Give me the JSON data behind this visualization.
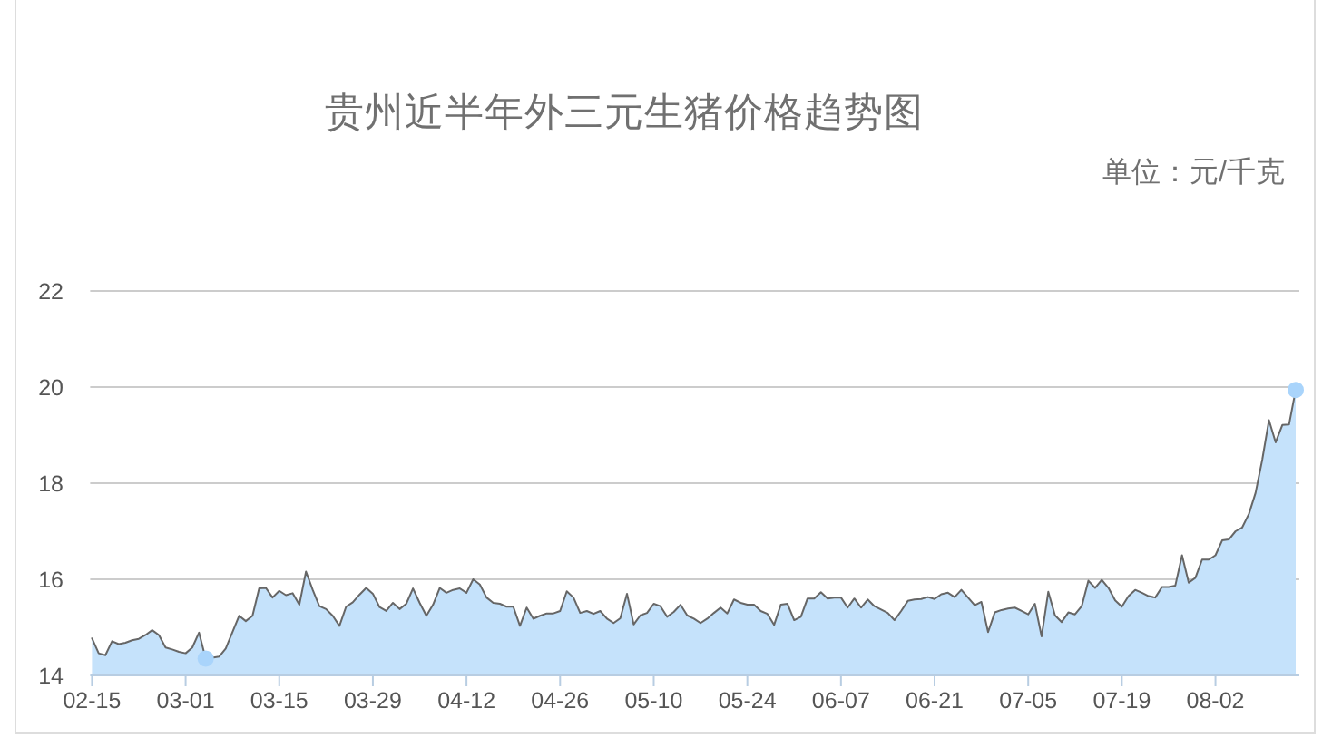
{
  "chart_data": {
    "type": "area",
    "title": "贵州近半年外三元生猪价格趋势图",
    "annotations": [
      "单位：元/千克"
    ],
    "categories": [
      "02-15",
      null,
      null,
      null,
      null,
      null,
      null,
      null,
      null,
      null,
      null,
      null,
      null,
      null,
      "03-01",
      null,
      null,
      null,
      null,
      null,
      null,
      null,
      null,
      null,
      null,
      null,
      null,
      null,
      "03-15",
      null,
      null,
      null,
      null,
      null,
      null,
      null,
      null,
      null,
      null,
      null,
      null,
      null,
      "03-29",
      null,
      null,
      null,
      null,
      null,
      null,
      null,
      null,
      null,
      null,
      null,
      null,
      null,
      "04-12",
      null,
      null,
      null,
      null,
      null,
      null,
      null,
      null,
      null,
      null,
      null,
      null,
      null,
      "04-26",
      null,
      null,
      null,
      null,
      null,
      null,
      null,
      null,
      null,
      null,
      null,
      null,
      null,
      "05-10",
      null,
      null,
      null,
      null,
      null,
      null,
      null,
      null,
      null,
      null,
      null,
      null,
      null,
      "05-24",
      null,
      null,
      null,
      null,
      null,
      null,
      null,
      null,
      null,
      null,
      null,
      null,
      null,
      "06-07",
      null,
      null,
      null,
      null,
      null,
      null,
      null,
      null,
      null,
      null,
      null,
      null,
      null,
      "06-21",
      null,
      null,
      null,
      null,
      null,
      null,
      null,
      null,
      null,
      null,
      null,
      null,
      null,
      "07-05",
      null,
      null,
      null,
      null,
      null,
      null,
      null,
      null,
      null,
      null,
      null,
      null,
      null,
      "07-19",
      null,
      null,
      null,
      null,
      null,
      null,
      null,
      null,
      null,
      null,
      null,
      null,
      null,
      "08-02",
      null,
      null,
      null,
      null,
      null,
      null,
      null,
      null,
      null,
      null,
      null,
      null
    ],
    "series": [
      {
        "color": "#c5e2fb",
        "values": [
          14.77,
          14.46,
          14.42,
          14.71,
          14.65,
          14.68,
          14.73,
          14.76,
          14.84,
          14.94,
          14.84,
          14.58,
          14.54,
          14.49,
          14.46,
          14.58,
          14.89,
          14.35,
          14.37,
          14.39,
          14.56,
          14.9,
          15.24,
          15.13,
          15.24,
          15.81,
          15.82,
          15.62,
          15.76,
          15.67,
          15.71,
          15.47,
          16.16,
          15.78,
          15.44,
          15.38,
          15.24,
          15.03,
          15.43,
          15.52,
          15.68,
          15.82,
          15.7,
          15.42,
          15.34,
          15.51,
          15.38,
          15.49,
          15.81,
          15.51,
          15.24,
          15.47,
          15.82,
          15.72,
          15.78,
          15.81,
          15.72,
          16.0,
          15.89,
          15.62,
          15.51,
          15.49,
          15.43,
          15.43,
          15.03,
          15.41,
          15.18,
          15.24,
          15.29,
          15.29,
          15.34,
          15.75,
          15.62,
          15.3,
          15.34,
          15.28,
          15.34,
          15.18,
          15.09,
          15.19,
          15.7,
          15.06,
          15.25,
          15.3,
          15.49,
          15.44,
          15.22,
          15.32,
          15.47,
          15.25,
          15.18,
          15.09,
          15.18,
          15.3,
          15.41,
          15.29,
          15.58,
          15.51,
          15.47,
          15.47,
          15.34,
          15.28,
          15.05,
          15.47,
          15.49,
          15.15,
          15.22,
          15.6,
          15.6,
          15.73,
          15.6,
          15.62,
          15.62,
          15.41,
          15.6,
          15.41,
          15.58,
          15.44,
          15.37,
          15.3,
          15.15,
          15.34,
          15.55,
          15.58,
          15.59,
          15.63,
          15.59,
          15.69,
          15.72,
          15.63,
          15.78,
          15.62,
          15.46,
          15.53,
          14.9,
          15.31,
          15.36,
          15.39,
          15.41,
          15.34,
          15.27,
          15.49,
          14.81,
          15.74,
          15.25,
          15.11,
          15.31,
          15.27,
          15.44,
          15.97,
          15.82,
          15.99,
          15.82,
          15.56,
          15.43,
          15.65,
          15.78,
          15.72,
          15.65,
          15.62,
          15.84,
          15.84,
          15.87,
          16.5,
          15.93,
          16.03,
          16.41,
          16.41,
          16.5,
          16.81,
          16.83,
          17.0,
          17.08,
          17.36,
          17.8,
          18.49,
          19.31,
          18.85,
          19.21,
          19.22,
          19.94
        ]
      },
      {
        "type": "scatter",
        "color": "#a9d4fb",
        "marker": "circle",
        "values": [
          null,
          null,
          null,
          null,
          null,
          null,
          null,
          null,
          null,
          null,
          null,
          null,
          null,
          null,
          null,
          null,
          null,
          14.35,
          null,
          null,
          null,
          null,
          null,
          null,
          null,
          null,
          null,
          null,
          null,
          null,
          null,
          null,
          null,
          null,
          null,
          null,
          null,
          null,
          null,
          null,
          null,
          null,
          null,
          null,
          null,
          null,
          null,
          null,
          null,
          null,
          null,
          null,
          null,
          null,
          null,
          null,
          null,
          null,
          null,
          null,
          null,
          null,
          null,
          null,
          null,
          null,
          null,
          null,
          null,
          null,
          null,
          null,
          null,
          null,
          null,
          null,
          null,
          null,
          null,
          null,
          null,
          null,
          null,
          null,
          null,
          null,
          null,
          null,
          null,
          null,
          null,
          null,
          null,
          null,
          null,
          null,
          null,
          null,
          null,
          null,
          null,
          null,
          null,
          null,
          null,
          null,
          null,
          null,
          null,
          null,
          null,
          null,
          null,
          null,
          null,
          null,
          null,
          null,
          null,
          null,
          null,
          null,
          null,
          null,
          null,
          null,
          null,
          null,
          null,
          null,
          null,
          null,
          null,
          null,
          null,
          null,
          null,
          null,
          null,
          null,
          null,
          null,
          null,
          null,
          null,
          null,
          null,
          null,
          null,
          null,
          null,
          null,
          null,
          null,
          null,
          null,
          null,
          null,
          null,
          null,
          null,
          null,
          null,
          null,
          null,
          null,
          null,
          null,
          null,
          null,
          null,
          null,
          null,
          null,
          null,
          null,
          null,
          null,
          null,
          null,
          19.94
        ]
      }
    ],
    "ylim": [
      14,
      22
    ],
    "yticks": [
      14,
      16,
      18,
      20,
      22
    ],
    "grid": "y"
  }
}
